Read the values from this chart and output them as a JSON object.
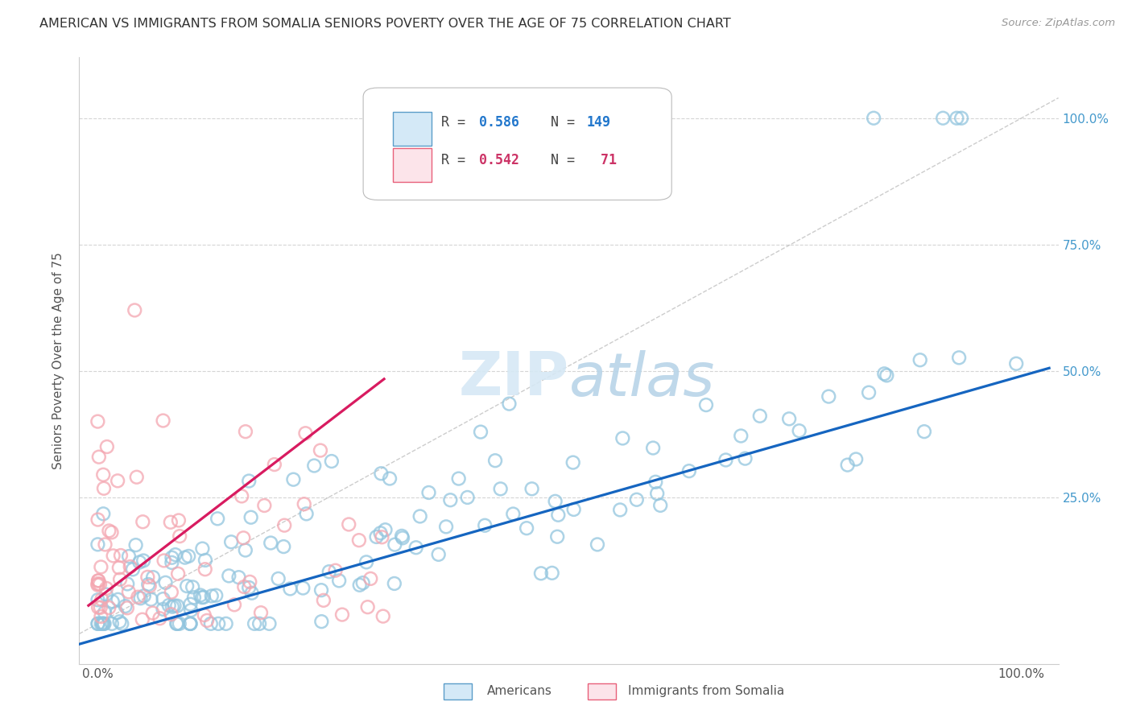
{
  "title": "AMERICAN VS IMMIGRANTS FROM SOMALIA SENIORS POVERTY OVER THE AGE OF 75 CORRELATION CHART",
  "source": "Source: ZipAtlas.com",
  "ylabel": "Seniors Poverty Over the Age of 75",
  "R_american": 0.586,
  "N_american": 149,
  "R_somalia": 0.542,
  "N_somalia": 71,
  "american_color": "#92c5de",
  "somalia_color": "#f4a6b0",
  "american_edge_color": "#5b9dc9",
  "somalia_edge_color": "#e8607a",
  "american_line_color": "#1565c0",
  "somalia_line_color": "#d81b60",
  "diagonal_color": "#c0c0c0",
  "background_color": "#ffffff",
  "grid_color": "#d5d5d5",
  "watermark_color": "#d6e8f5",
  "watermark": "ZIPatlas"
}
